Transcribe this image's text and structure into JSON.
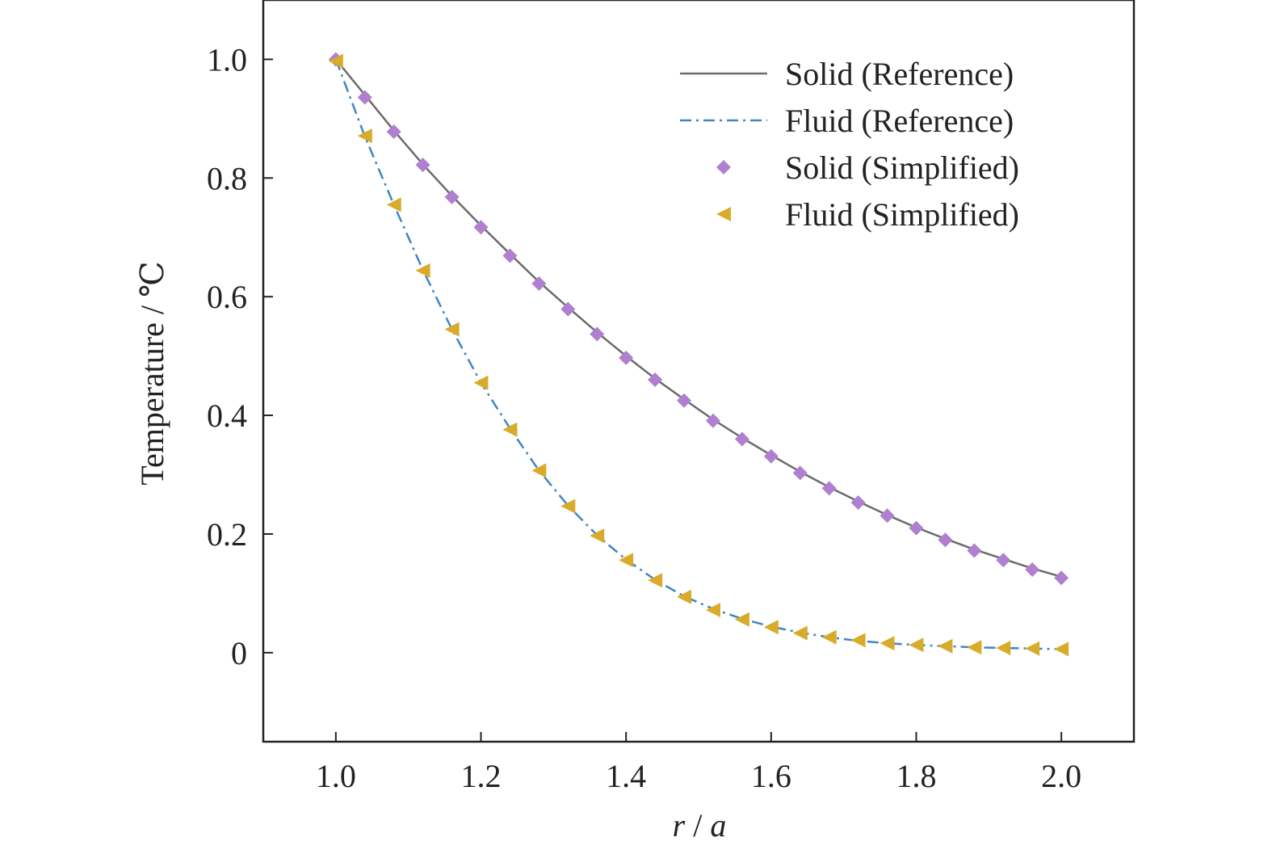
{
  "chart_data": {
    "type": "line",
    "xlabel_var": "r",
    "xlabel_sep": " / ",
    "xlabel_unit": "a",
    "ylabel": "Temperature / ℃",
    "xlim": [
      0.9,
      2.1
    ],
    "ylim": [
      -0.15,
      1.1
    ],
    "xticks": [
      {
        "value": 1.0,
        "label": "1.0"
      },
      {
        "value": 1.2,
        "label": "1.2"
      },
      {
        "value": 1.4,
        "label": "1.4"
      },
      {
        "value": 1.6,
        "label": "1.6"
      },
      {
        "value": 1.8,
        "label": "1.8"
      },
      {
        "value": 2.0,
        "label": "2.0"
      }
    ],
    "yticks": [
      {
        "value": 0.0,
        "label": "0"
      },
      {
        "value": 0.2,
        "label": "0.2"
      },
      {
        "value": 0.4,
        "label": "0.4"
      },
      {
        "value": 0.6,
        "label": "0.6"
      },
      {
        "value": 0.8,
        "label": "0.8"
      },
      {
        "value": 1.0,
        "label": "1.0"
      }
    ],
    "grid": false,
    "legend_position": "top-right",
    "series": [
      {
        "name": "Solid (Reference)",
        "kind": "line",
        "style": "solid",
        "color": "#6b6b6b",
        "x": [
          1.0,
          1.04,
          1.08,
          1.12,
          1.16,
          1.2,
          1.24,
          1.28,
          1.32,
          1.36,
          1.4,
          1.44,
          1.48,
          1.52,
          1.56,
          1.6,
          1.64,
          1.68,
          1.72,
          1.76,
          1.8,
          1.84,
          1.88,
          1.92,
          1.96,
          2.0
        ],
        "y": [
          1.0,
          0.94,
          0.88,
          0.823,
          0.77,
          0.72,
          0.672,
          0.625,
          0.582,
          0.54,
          0.5,
          0.462,
          0.427,
          0.393,
          0.362,
          0.333,
          0.305,
          0.279,
          0.255,
          0.232,
          0.211,
          0.192,
          0.174,
          0.158,
          0.142,
          0.128
        ]
      },
      {
        "name": "Fluid (Reference)",
        "kind": "line",
        "style": "dashdot",
        "color": "#3f86c4",
        "x": [
          1.0,
          1.04,
          1.08,
          1.12,
          1.16,
          1.2,
          1.24,
          1.28,
          1.32,
          1.36,
          1.4,
          1.44,
          1.48,
          1.52,
          1.56,
          1.6,
          1.64,
          1.68,
          1.72,
          1.76,
          1.8,
          1.84,
          1.88,
          1.92,
          1.96,
          2.0
        ],
        "y": [
          1.0,
          0.87,
          0.755,
          0.645,
          0.545,
          0.455,
          0.378,
          0.307,
          0.248,
          0.198,
          0.157,
          0.123,
          0.095,
          0.074,
          0.057,
          0.044,
          0.034,
          0.026,
          0.02,
          0.016,
          0.013,
          0.011,
          0.009,
          0.008,
          0.007,
          0.006
        ]
      },
      {
        "name": "Solid (Simplified)",
        "kind": "scatter",
        "marker": "diamond",
        "color": "#b07fcf",
        "x": [
          1.0,
          1.04,
          1.08,
          1.12,
          1.16,
          1.2,
          1.24,
          1.28,
          1.32,
          1.36,
          1.4,
          1.44,
          1.48,
          1.52,
          1.56,
          1.6,
          1.64,
          1.68,
          1.72,
          1.76,
          1.8,
          1.84,
          1.88,
          1.92,
          1.96,
          2.0
        ],
        "y": [
          1.0,
          0.936,
          0.878,
          0.822,
          0.768,
          0.717,
          0.669,
          0.622,
          0.579,
          0.537,
          0.497,
          0.46,
          0.425,
          0.391,
          0.36,
          0.331,
          0.303,
          0.277,
          0.253,
          0.231,
          0.21,
          0.19,
          0.172,
          0.156,
          0.14,
          0.126
        ]
      },
      {
        "name": "Fluid (Simplified)",
        "kind": "scatter",
        "marker": "triangle-left",
        "color": "#d9ab2a",
        "x": [
          1.0,
          1.04,
          1.08,
          1.12,
          1.16,
          1.2,
          1.24,
          1.28,
          1.32,
          1.36,
          1.4,
          1.44,
          1.48,
          1.52,
          1.56,
          1.6,
          1.64,
          1.68,
          1.72,
          1.76,
          1.8,
          1.84,
          1.88,
          1.92,
          1.96,
          2.0
        ],
        "y": [
          0.997,
          0.871,
          0.755,
          0.644,
          0.545,
          0.455,
          0.376,
          0.307,
          0.247,
          0.197,
          0.156,
          0.122,
          0.094,
          0.072,
          0.056,
          0.043,
          0.033,
          0.026,
          0.021,
          0.016,
          0.013,
          0.011,
          0.009,
          0.008,
          0.007,
          0.006
        ]
      }
    ]
  }
}
